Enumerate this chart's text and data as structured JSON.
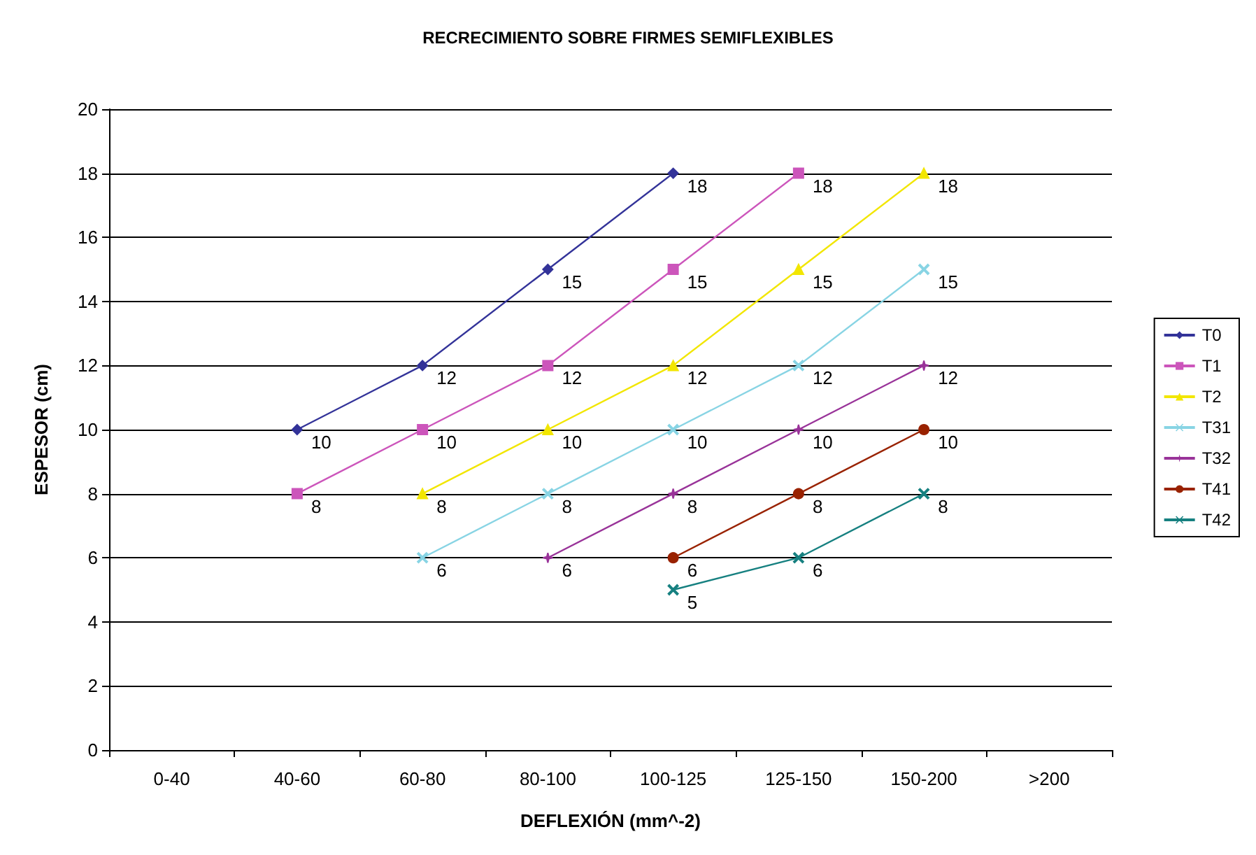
{
  "chart_data": {
    "type": "line",
    "title": "RECRECIMIENTO SOBRE FIRMES SEMIFLEXIBLES",
    "xlabel": "DEFLEXIÓN (mm^-2)",
    "ylabel": "ESPESOR (cm)",
    "categories": [
      "0-40",
      "40-60",
      "60-80",
      "80-100",
      "100-125",
      "125-150",
      "150-200",
      ">200"
    ],
    "series": [
      {
        "name": "T0",
        "color": "#333399",
        "marker": "diamond",
        "values": [
          null,
          10,
          12,
          15,
          18,
          null,
          null,
          null
        ]
      },
      {
        "name": "T1",
        "color": "#cc55bb",
        "marker": "square",
        "values": [
          null,
          8,
          10,
          12,
          15,
          18,
          null,
          null
        ]
      },
      {
        "name": "T2",
        "color": "#f2e600",
        "marker": "triangle",
        "values": [
          null,
          null,
          8,
          10,
          12,
          15,
          18,
          null
        ]
      },
      {
        "name": "T31",
        "color": "#88d4e4",
        "marker": "cross",
        "values": [
          null,
          null,
          6,
          8,
          10,
          12,
          15,
          null
        ]
      },
      {
        "name": "T32",
        "color": "#993399",
        "marker": "star",
        "values": [
          null,
          null,
          null,
          6,
          8,
          10,
          12,
          null
        ]
      },
      {
        "name": "T41",
        "color": "#992200",
        "marker": "circle",
        "values": [
          null,
          null,
          null,
          null,
          6,
          8,
          10,
          null
        ]
      },
      {
        "name": "T42",
        "color": "#168080",
        "marker": "cross",
        "values": [
          null,
          null,
          null,
          null,
          5,
          6,
          8,
          null
        ]
      }
    ],
    "ylim": [
      0,
      20
    ],
    "yticks": [
      0,
      2,
      4,
      6,
      8,
      10,
      12,
      14,
      16,
      18,
      20
    ],
    "grid": "y",
    "legend": "right",
    "data_labels": true,
    "line_style": "solid"
  }
}
